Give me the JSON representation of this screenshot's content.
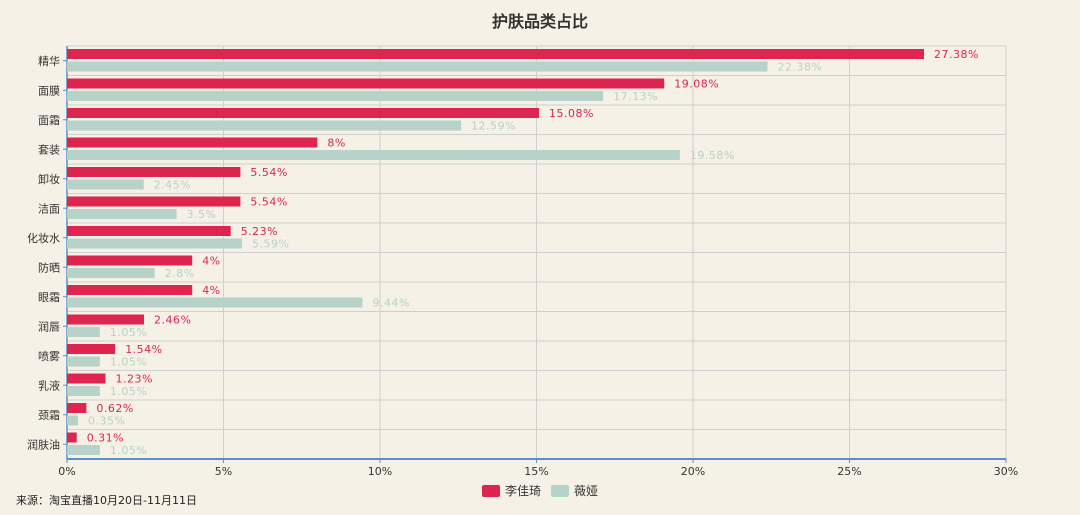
{
  "chart_data": {
    "type": "bar",
    "orientation": "horizontal",
    "title": "护肤品类占比",
    "categories": [
      "精华",
      "面膜",
      "面霜",
      "套装",
      "卸妆",
      "洁面",
      "化妆水",
      "防晒",
      "眼霜",
      "润唇",
      "喷雾",
      "乳液",
      "颈霜",
      "润肤油"
    ],
    "series": [
      {
        "name": "李佳琦",
        "color": "#dd2550",
        "values": [
          27.38,
          19.08,
          15.08,
          8,
          5.54,
          5.54,
          5.23,
          4,
          4,
          2.46,
          1.54,
          1.23,
          0.62,
          0.31
        ],
        "labels": [
          "27.38%",
          "19.08%",
          "15.08%",
          "8%",
          "5.54%",
          "5.54%",
          "5.23%",
          "4%",
          "4%",
          "2.46%",
          "1.54%",
          "1.23%",
          "0.62%",
          "0.31%"
        ]
      },
      {
        "name": "薇娅",
        "color": "#b7d2c8",
        "values": [
          22.38,
          17.13,
          12.59,
          19.58,
          2.45,
          3.5,
          5.59,
          2.8,
          9.44,
          1.05,
          1.05,
          1.05,
          0.35,
          1.05
        ],
        "labels": [
          "22.38%",
          "17.13%",
          "12.59%",
          "19.58%",
          "2.45%",
          "3.5%",
          "5.59%",
          "2.8%",
          "9.44%",
          "1.05%",
          "1.05%",
          "1.05%",
          "0.35%",
          "1.05%"
        ]
      }
    ],
    "xlim": [
      0,
      30
    ],
    "x_ticks": [
      0,
      5,
      10,
      15,
      20,
      25,
      30
    ],
    "x_tick_labels": [
      "0%",
      "5%",
      "10%",
      "15%",
      "20%",
      "25%",
      "30%"
    ],
    "grid": true,
    "legend_position": "bottom-center"
  },
  "colors": {
    "background": "#f5f1e6",
    "grid": "#cfcfcf",
    "axis": "#5b8fc7"
  },
  "source_note": "来源：淘宝直播10月20日-11月11日"
}
